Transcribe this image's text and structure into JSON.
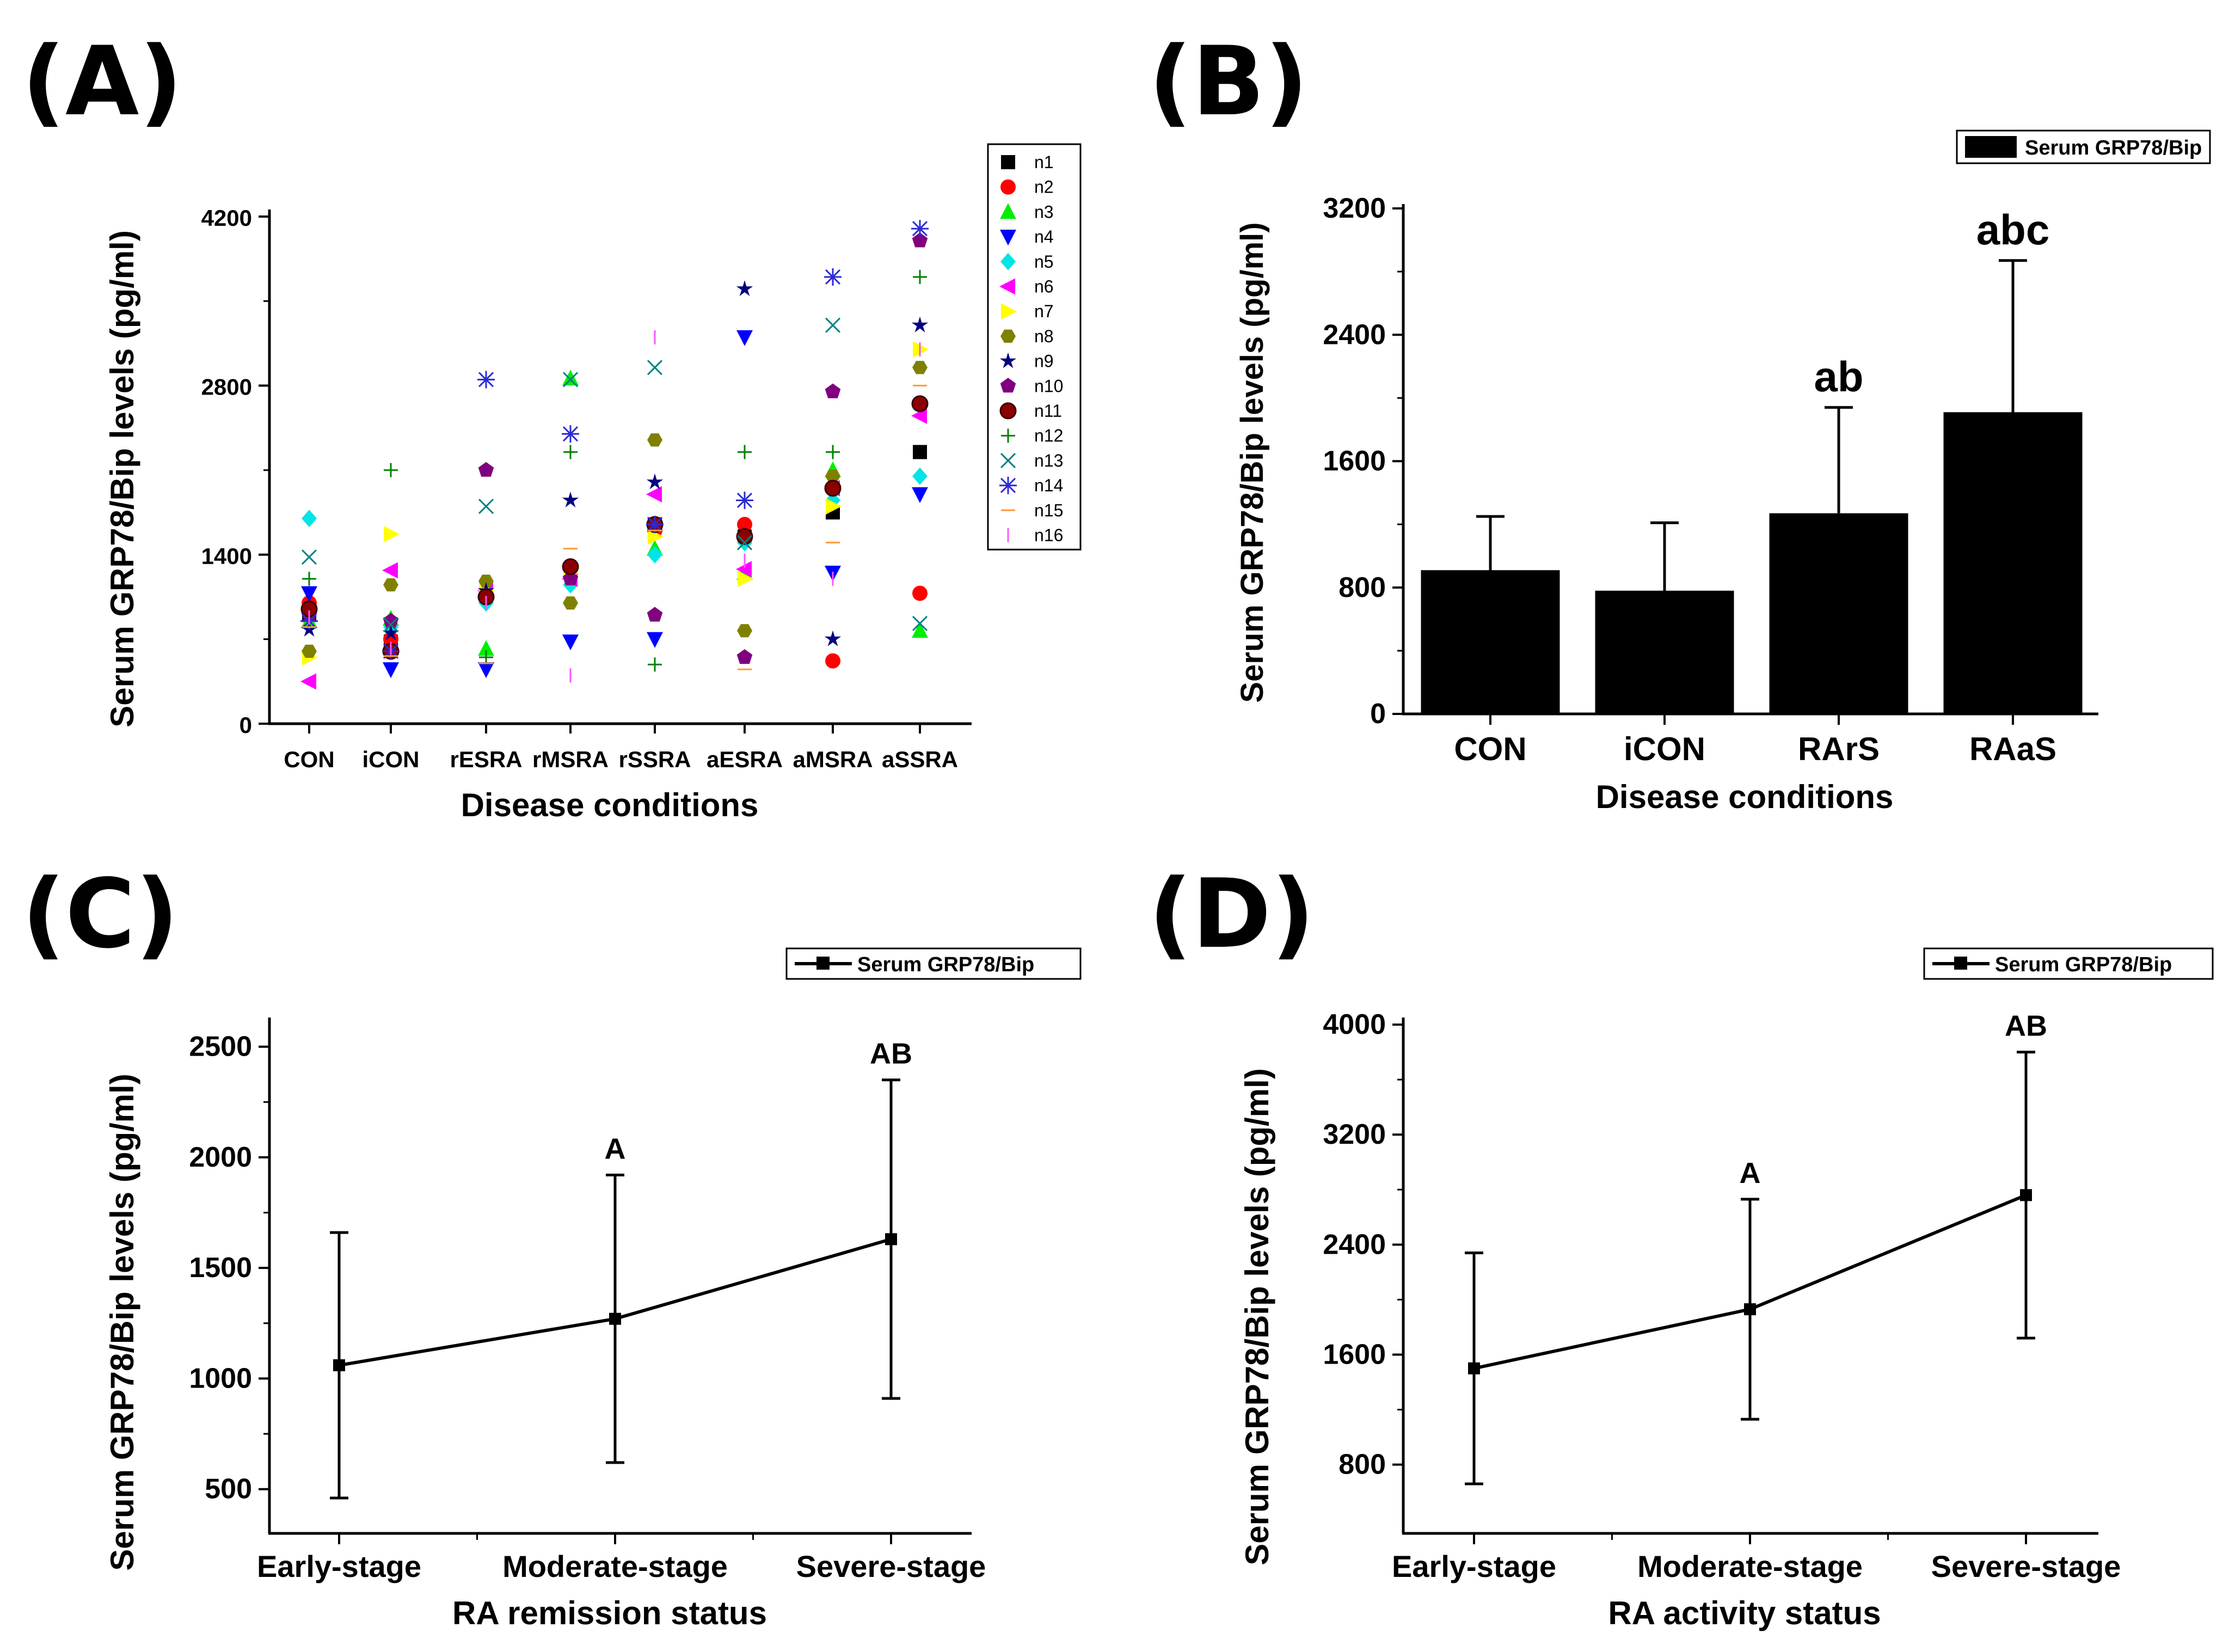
{
  "chart_data": [
    {
      "panel": "(A)",
      "type": "scatter",
      "xlabel": "Disease conditions",
      "ylabel": "Serum GRP78/Bip levels (pg/ml)",
      "ylim": [
        0,
        4200
      ],
      "yticks": [
        "0",
        "1400",
        "2800",
        "4200"
      ],
      "categories": [
        "CON",
        "iCON",
        "rESRA",
        "rMSRA",
        "rSSRA",
        "aESRA",
        "aMSRA",
        "aSSRA"
      ],
      "series": [
        {
          "name": "n1",
          "marker": "square",
          "color": "#000000",
          "values": [
            900,
            680,
            1100,
            1250,
            1650,
            1550,
            1750,
            2250
          ]
        },
        {
          "name": "n2",
          "marker": "circle",
          "color": "#ff0000",
          "values": [
            1000,
            700,
            1050,
            1300,
            1600,
            1650,
            520,
            1080
          ]
        },
        {
          "name": "n3",
          "marker": "triangle-up",
          "color": "#00ee00",
          "values": [
            850,
            870,
            620,
            2860,
            1450,
            1250,
            2100,
            770
          ]
        },
        {
          "name": "n4",
          "marker": "triangle-down",
          "color": "#0000ff",
          "values": [
            1080,
            450,
            450,
            680,
            700,
            3200,
            1250,
            1900
          ]
        },
        {
          "name": "n5",
          "marker": "diamond",
          "color": "#00e5e5",
          "values": [
            1700,
            800,
            1000,
            1150,
            1400,
            1500,
            1850,
            2050
          ]
        },
        {
          "name": "n6",
          "marker": "triangle-left",
          "color": "#ff00ff",
          "values": [
            350,
            1270,
            1100,
            1200,
            1900,
            1280,
            1950,
            2550
          ]
        },
        {
          "name": "n7",
          "marker": "triangle-right",
          "color": "#ffff00",
          "values": [
            550,
            1570,
            1100,
            1250,
            1550,
            1200,
            1800,
            3100
          ]
        },
        {
          "name": "n8",
          "marker": "hexagon",
          "color": "#808000",
          "values": [
            600,
            1150,
            1180,
            1000,
            2350,
            770,
            2050,
            2950
          ]
        },
        {
          "name": "n9",
          "marker": "star",
          "color": "#000080",
          "values": [
            780,
            750,
            1100,
            1850,
            2000,
            3600,
            700,
            3300
          ]
        },
        {
          "name": "n10",
          "marker": "pentagon",
          "color": "#800080",
          "values": [
            900,
            850,
            2100,
            1200,
            900,
            550,
            2750,
            4000
          ]
        },
        {
          "name": "n11",
          "marker": "ball",
          "color": "#8b0000",
          "values": [
            950,
            600,
            1050,
            1300,
            1650,
            1550,
            1950,
            2650
          ]
        },
        {
          "name": "n12",
          "marker": "plus",
          "color": "#008000",
          "values": [
            1200,
            2100,
            550,
            2250,
            490,
            2250,
            2250,
            3700
          ]
        },
        {
          "name": "n13",
          "marker": "x",
          "color": "#008080",
          "values": [
            1380,
            820,
            1800,
            2850,
            2950,
            1500,
            3300,
            830
          ]
        },
        {
          "name": "n14",
          "marker": "asterisk",
          "color": "#2b2bd4",
          "values": [
            850,
            600,
            2850,
            2400,
            1650,
            1850,
            3700,
            4100
          ]
        },
        {
          "name": "n15",
          "marker": "dash",
          "color": "#ff9933",
          "values": [
            800,
            560,
            500,
            1450,
            1600,
            450,
            1500,
            2800
          ]
        },
        {
          "name": "n16",
          "marker": "vbar",
          "color": "#ff55ff",
          "values": [
            880,
            620,
            1000,
            400,
            3200,
            1350,
            1200,
            3100
          ]
        }
      ]
    },
    {
      "panel": "(B)",
      "type": "bar",
      "xlabel": "Disease conditions",
      "ylabel": "Serum GRP78/Bip levels (pg/ml)",
      "ylim": [
        0,
        3200
      ],
      "yticks": [
        "0",
        "800",
        "1600",
        "2400",
        "3200"
      ],
      "categories": [
        "CON",
        "iCON",
        "RArS",
        "RAaS"
      ],
      "values": [
        910,
        780,
        1270,
        1910
      ],
      "errors": [
        340,
        430,
        670,
        960
      ],
      "annotations": [
        "",
        "",
        "ab",
        "abc"
      ],
      "legend": "Serum GRP78/Bip"
    },
    {
      "panel": "(C)",
      "type": "line",
      "xlabel": "RA remission status",
      "ylabel": "Serum GRP78/Bip levels (pg/ml)",
      "ylim": [
        300,
        2600
      ],
      "yticks": [
        "500",
        "1000",
        "1500",
        "2000",
        "2500"
      ],
      "categories": [
        "Early-stage",
        "Moderate-stage",
        "Severe-stage"
      ],
      "values": [
        1060,
        1270,
        1630
      ],
      "errors": [
        600,
        650,
        720
      ],
      "annotations": [
        "",
        "A",
        "AB"
      ],
      "legend": "Serum GRP78/Bip"
    },
    {
      "panel": "(D)",
      "type": "line",
      "xlabel": "RA activity status",
      "ylabel": "Serum GRP78/Bip levels (pg/ml)",
      "ylim": [
        300,
        4000
      ],
      "yticks": [
        "800",
        "1600",
        "2400",
        "3200",
        "4000"
      ],
      "categories": [
        "Early-stage",
        "Moderate-stage",
        "Severe-stage"
      ],
      "values": [
        1500,
        1930,
        2760
      ],
      "errors": [
        840,
        800,
        1040
      ],
      "annotations": [
        "",
        "A",
        "AB"
      ],
      "legend": "Serum GRP78/Bip"
    }
  ]
}
